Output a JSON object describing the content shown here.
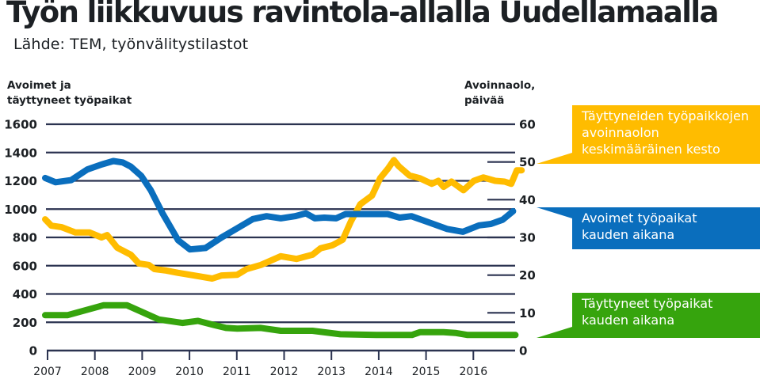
{
  "title": "Työn liikkuvuus ravintola-allalla Uudellamaalla",
  "subtitle": "Lähde: TEM, työnvälitystilastot",
  "chart_data": {
    "type": "line",
    "title": "Työn liikkuvuus ravintola-allalla Uudellamaalla",
    "subtitle": "Lähde: TEM, työnvälitystilastot",
    "xlabel": "",
    "ylabel_left": [
      "Avoimet ja",
      "täyttyneet työpaikat"
    ],
    "ylabel_right": [
      "Avoinnaolo,",
      "päivää"
    ],
    "xlim": [
      2007,
      2016.8
    ],
    "ylim_left": [
      0,
      1600
    ],
    "ylim_right": [
      0,
      60
    ],
    "x_ticks": [
      "2007",
      "2008",
      "2009",
      "2010",
      "2011",
      "2012",
      "2013",
      "2014",
      "2015",
      "2016"
    ],
    "y_ticks_left": [
      "0",
      "200",
      "400",
      "600",
      "800",
      "1000",
      "1200",
      "1400",
      "1600"
    ],
    "y_ticks_right": [
      "0",
      "10",
      "20",
      "30",
      "40",
      "50",
      "60"
    ],
    "grid": true,
    "legend_placement": "right",
    "series": [
      {
        "name": "Täyttyneiden työpaikkojen avoinnaolon keskimääräinen kesto",
        "label_lines": [
          "Täyttyneiden työpaikkojen",
          "avoinnaolon",
          "keskimääräinen kesto"
        ],
        "axis": "right",
        "color": "#ffbc00",
        "callout_value": 50,
        "x": [
          2006.95,
          2007.08,
          2007.3,
          2007.59,
          2007.89,
          2008.14,
          2008.26,
          2008.47,
          2008.76,
          2008.93,
          2009.14,
          2009.26,
          2009.51,
          2009.76,
          2010.09,
          2010.48,
          2010.68,
          2011.01,
          2011.21,
          2011.51,
          2011.93,
          2012.26,
          2012.6,
          2012.77,
          2013.02,
          2013.24,
          2013.41,
          2013.61,
          2013.86,
          2014.03,
          2014.2,
          2014.32,
          2014.42,
          2014.65,
          2014.87,
          2015.12,
          2015.26,
          2015.37,
          2015.54,
          2015.79,
          2016.01,
          2016.21,
          2016.46,
          2016.66,
          2016.8,
          2016.92,
          2017.02
        ],
        "values": [
          34.8,
          33.1,
          32.7,
          31.3,
          31.3,
          30.0,
          30.6,
          27.3,
          25.4,
          23.1,
          22.7,
          21.6,
          21.2,
          20.6,
          19.9,
          19.1,
          19.9,
          20.1,
          21.6,
          22.7,
          25.0,
          24.3,
          25.4,
          27.1,
          27.9,
          29.4,
          34.2,
          38.8,
          41.1,
          45.7,
          48.3,
          50.5,
          48.9,
          46.4,
          45.7,
          44.2,
          45.0,
          43.4,
          44.8,
          42.5,
          45.0,
          45.9,
          45.0,
          44.8,
          44.2,
          47.8,
          47.8
        ]
      },
      {
        "name": "Avoimet työpaikat kauden aikana",
        "label_lines": [
          "Avoimet työpaikat",
          "kauden aikana"
        ],
        "axis": "left",
        "color": "#0a6ebd",
        "callout_value": 40,
        "x": [
          2006.95,
          2007.17,
          2007.5,
          2007.84,
          2008.14,
          2008.39,
          2008.59,
          2008.76,
          2008.98,
          2009.18,
          2009.43,
          2009.76,
          2010.01,
          2010.34,
          2010.68,
          2011.01,
          2011.34,
          2011.63,
          2011.93,
          2012.23,
          2012.46,
          2012.65,
          2012.85,
          2013.1,
          2013.3,
          2013.69,
          2014.19,
          2014.44,
          2014.69,
          2015.11,
          2015.44,
          2015.78,
          2016.12,
          2016.37,
          2016.62,
          2016.84
        ],
        "values": [
          1220,
          1190,
          1205,
          1280,
          1315,
          1340,
          1330,
          1300,
          1235,
          1135,
          970,
          780,
          715,
          725,
          800,
          865,
          930,
          950,
          935,
          950,
          970,
          935,
          940,
          935,
          965,
          965,
          965,
          940,
          950,
          900,
          860,
          840,
          885,
          895,
          925,
          985
        ]
      },
      {
        "name": "Täyttyneet työpaikat kauden aikana",
        "label_lines": [
          "Täyttyneet työpaikat",
          "kauden aikana"
        ],
        "axis": "left",
        "color": "#36a40d",
        "callout_value": 3,
        "x": [
          2006.95,
          2007.42,
          2008.18,
          2008.68,
          2009.35,
          2009.85,
          2010.18,
          2010.52,
          2010.77,
          2011.01,
          2011.51,
          2011.93,
          2012.6,
          2013.19,
          2013.95,
          2014.7,
          2014.87,
          2015.37,
          2015.62,
          2015.88,
          2016.89
        ],
        "values": [
          250,
          250,
          320,
          320,
          220,
          195,
          210,
          180,
          160,
          155,
          160,
          140,
          140,
          115,
          110,
          110,
          130,
          130,
          125,
          110,
          110
        ]
      }
    ]
  }
}
